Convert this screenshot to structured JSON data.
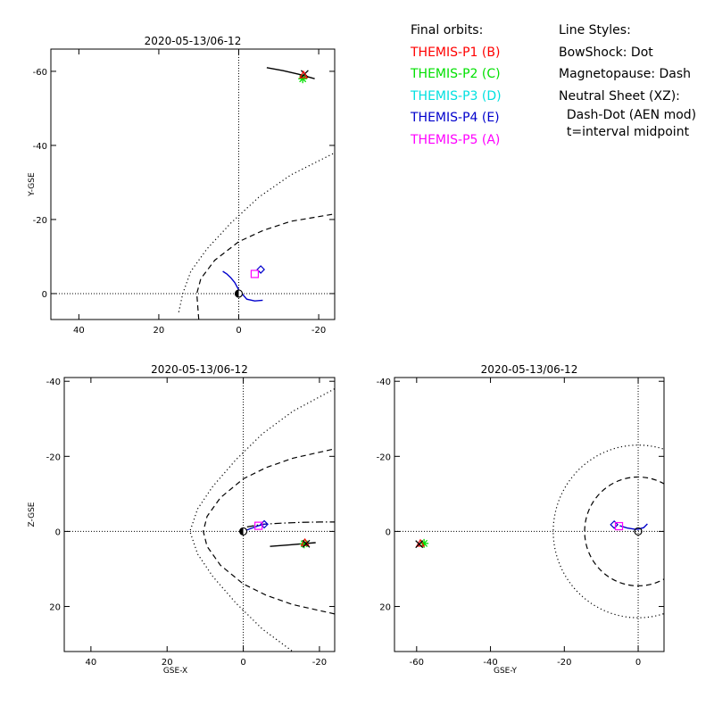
{
  "legend": {
    "orbits_title": "Final orbits:",
    "probes": [
      {
        "label": "THEMIS-P1 (B)",
        "color": "#ff0000"
      },
      {
        "label": "THEMIS-P2 (C)",
        "color": "#00e000"
      },
      {
        "label": "THEMIS-P3 (D)",
        "color": "#00e0e0"
      },
      {
        "label": "THEMIS-P4 (E)",
        "color": "#0000cc"
      },
      {
        "label": "THEMIS-P5 (A)",
        "color": "#ff00ff"
      }
    ],
    "styles_title": "Line Styles:",
    "style_lines": [
      "BowShock: Dot",
      "Magnetopause: Dash",
      "Neutral Sheet (XZ):",
      "  Dash-Dot (AEN mod)",
      "  t=interval midpoint"
    ]
  },
  "chart_data": [
    {
      "type": "line",
      "id": "xy",
      "title": "2020-05-13/06-12",
      "xlabel": "",
      "ylabel": "Y-GSE",
      "xlim": [
        47,
        -24
      ],
      "ylim": [
        7,
        -66
      ],
      "xticks": [
        40,
        20,
        0,
        -20
      ],
      "yticks": [
        -60,
        -40,
        -20,
        0
      ],
      "series": [
        {
          "style": "dot",
          "x": [
            15,
            14,
            12,
            8,
            2,
            -5,
            -13,
            -24
          ],
          "y": [
            5,
            0,
            -6,
            -12,
            -19,
            -26,
            -32,
            -38
          ]
        },
        {
          "style": "dash",
          "x": [
            10,
            10.5,
            9.5,
            6,
            0,
            -6,
            -13,
            -24
          ],
          "y": [
            7,
            0,
            -4,
            -9,
            -14,
            -17,
            -19.5,
            -21.5
          ]
        },
        {
          "style": "solid",
          "color": "#000000",
          "x": [
            -7,
            -11,
            -15,
            -19
          ],
          "y": [
            -61,
            -60.2,
            -59.2,
            -58
          ]
        },
        {
          "style": "solid",
          "color": "#0000cc",
          "x": [
            0,
            1,
            2,
            3,
            4
          ],
          "y": [
            -1,
            -3,
            -4.3,
            -5.3,
            -6
          ]
        },
        {
          "style": "solid",
          "color": "#0000cc",
          "x": [
            0,
            -2,
            -4,
            -6
          ],
          "y": [
            -1,
            1.5,
            2,
            1.8
          ]
        }
      ],
      "markers": [
        {
          "shape": "star",
          "color": "#00e000",
          "x": -16,
          "y": -58
        },
        {
          "shape": "cross",
          "color": "#000000",
          "x": -16.5,
          "y": -59.3
        },
        {
          "shape": "triangle",
          "color": "#ff0000",
          "x": -16.2,
          "y": -59
        },
        {
          "shape": "diamond",
          "color": "#0000cc",
          "x": -5.5,
          "y": -6.5
        },
        {
          "shape": "square",
          "color": "#ff00ff",
          "x": -4,
          "y": -5.3
        },
        {
          "shape": "earth",
          "x": 0,
          "y": 0
        }
      ]
    },
    {
      "type": "line",
      "id": "xz",
      "title": "2020-05-13/06-12",
      "xlabel": "GSE-X",
      "ylabel": "Z-GSE",
      "xlim": [
        47,
        -24
      ],
      "ylim": [
        32,
        -41
      ],
      "xticks": [
        40,
        20,
        0,
        -20
      ],
      "yticks": [
        20,
        0,
        -20,
        -40
      ],
      "series": [
        {
          "style": "dot",
          "x": [
            -24,
            -13,
            -5,
            2,
            8,
            12,
            14,
            12,
            8,
            2,
            -5,
            -13,
            -24
          ],
          "y": [
            38,
            32,
            26,
            19,
            12,
            6,
            0,
            -6,
            -12,
            -19,
            -26,
            -32,
            -38
          ]
        },
        {
          "style": "dash",
          "x": [
            -24,
            -13,
            -6,
            0,
            6,
            9.5,
            10.5,
            9.5,
            6,
            0,
            -6,
            -13,
            -24
          ],
          "y": [
            22,
            19.5,
            17,
            14,
            9,
            4,
            0,
            -4,
            -9,
            -14,
            -17,
            -19.5,
            -22
          ]
        },
        {
          "style": "dashdot",
          "x": [
            -1,
            -5,
            -10,
            -15,
            -20,
            -24
          ],
          "y": [
            -1.2,
            -1.9,
            -2.2,
            -2.4,
            -2.5,
            -2.5
          ]
        },
        {
          "style": "solid",
          "color": "#000000",
          "x": [
            -7,
            -12,
            -19
          ],
          "y": [
            4,
            3.6,
            3
          ]
        },
        {
          "style": "solid",
          "color": "#0000cc",
          "x": [
            0,
            -2,
            -4,
            -6
          ],
          "y": [
            0,
            -0.8,
            -1.5,
            -2
          ]
        }
      ],
      "markers": [
        {
          "shape": "star",
          "color": "#00e000",
          "x": -16,
          "y": 3.3
        },
        {
          "shape": "triangle",
          "color": "#ff0000",
          "x": -16.2,
          "y": 3
        },
        {
          "shape": "cross",
          "color": "#000000",
          "x": -16.5,
          "y": 3.3
        },
        {
          "shape": "diamond",
          "color": "#0000cc",
          "x": -5.5,
          "y": -1.9
        },
        {
          "shape": "square",
          "color": "#ff00ff",
          "x": -4,
          "y": -1.5
        },
        {
          "shape": "earth",
          "x": 0,
          "y": 0
        }
      ]
    },
    {
      "type": "line",
      "id": "yz",
      "title": "2020-05-13/06-12",
      "xlabel": "GSE-Y",
      "ylabel": "",
      "xlim": [
        -66,
        7
      ],
      "ylim": [
        32,
        -41
      ],
      "xticks": [
        -60,
        -40,
        -20,
        0
      ],
      "yticks": [
        20,
        0,
        -20,
        -40
      ],
      "series": [
        {
          "style": "dot",
          "circle_r": 23
        },
        {
          "style": "dash",
          "circle_r": 14.5
        },
        {
          "style": "solid",
          "color": "#0000cc",
          "x": [
            -5,
            -3,
            -1,
            0,
            1.5,
            2.5
          ],
          "y": [
            -1.5,
            -0.9,
            -0.6,
            -0.6,
            -1,
            -2
          ]
        }
      ],
      "markers": [
        {
          "shape": "star",
          "color": "#00e000",
          "x": -58,
          "y": 3.2
        },
        {
          "shape": "triangle",
          "color": "#ff0000",
          "x": -59,
          "y": 3.2
        },
        {
          "shape": "cross",
          "color": "#000000",
          "x": -59.3,
          "y": 3.4
        },
        {
          "shape": "diamond",
          "color": "#0000cc",
          "x": -6.5,
          "y": -1.8
        },
        {
          "shape": "square",
          "color": "#ff00ff",
          "x": -5.2,
          "y": -1.4
        },
        {
          "shape": "earth_open",
          "x": 0,
          "y": 0
        }
      ]
    }
  ]
}
